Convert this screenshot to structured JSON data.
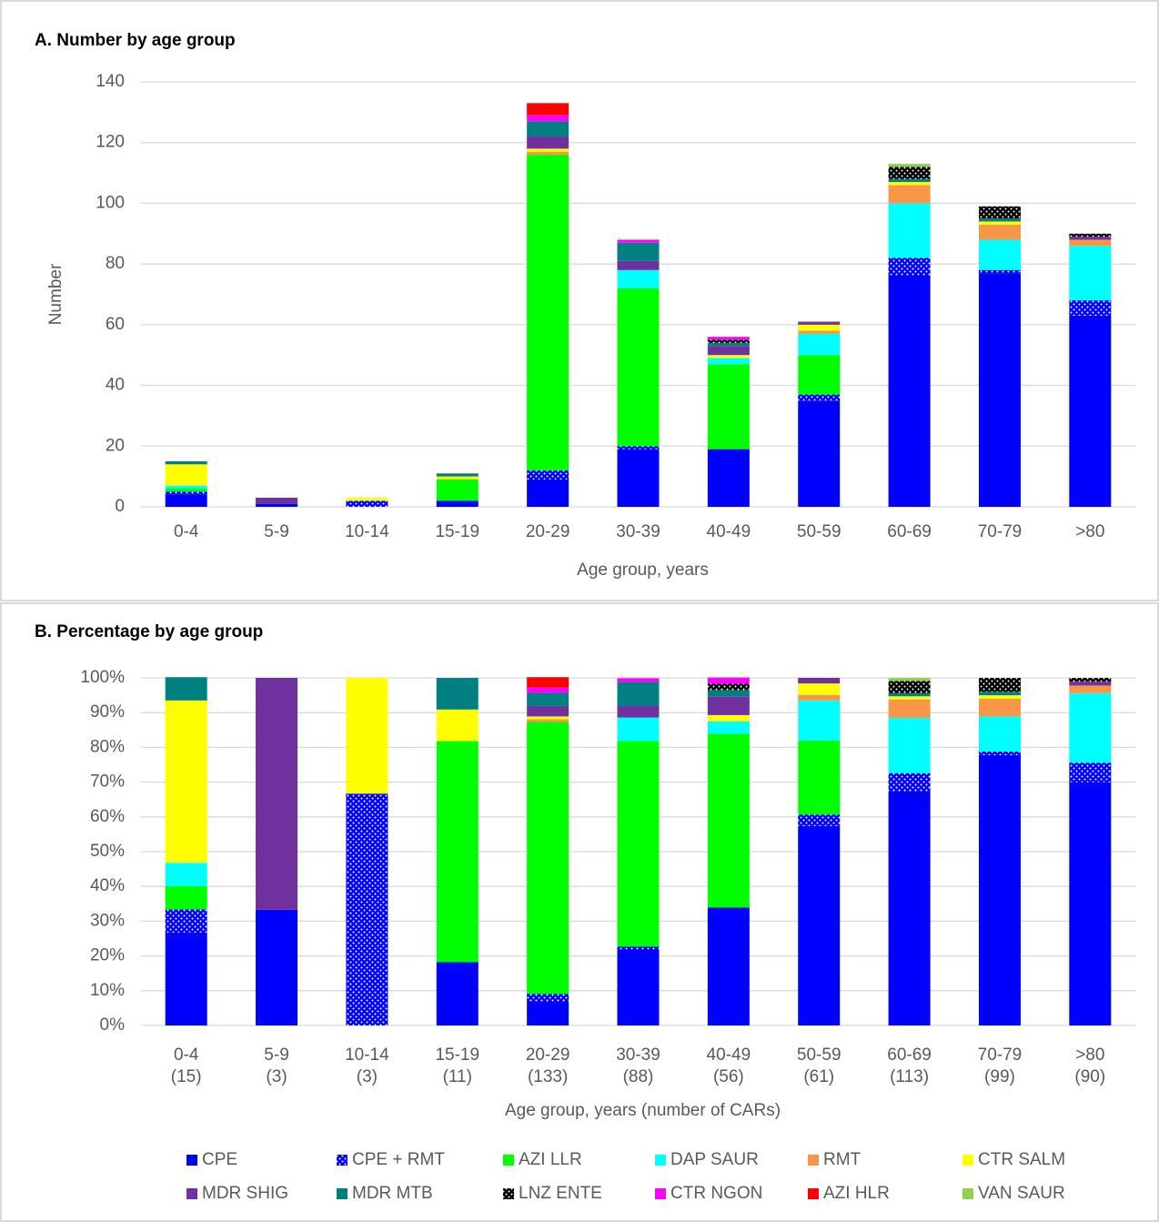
{
  "chart_data": [
    {
      "type": "stacked_bar",
      "title": "A. Number by age group",
      "x_label": "Age group, years",
      "y_label": "Number",
      "categories": [
        "0-4",
        "5-9",
        "10-14",
        "15-19",
        "20-29",
        "30-39",
        "40-49",
        "50-59",
        "60-69",
        "70-79",
        ">80"
      ],
      "ylim": [
        0,
        140
      ],
      "yticks": [
        0,
        20,
        40,
        60,
        80,
        100,
        120,
        140
      ],
      "grid": true,
      "series": [
        {
          "name": "CPE",
          "color": "#0000ff",
          "values": [
            4,
            1,
            0,
            2,
            9,
            19,
            19,
            35,
            76,
            77,
            63
          ]
        },
        {
          "name": "CPE + RMT",
          "color": "#0000ff",
          "pattern": "dots",
          "values": [
            1,
            0,
            2,
            0,
            3,
            1,
            0,
            2,
            6,
            1,
            5
          ]
        },
        {
          "name": "AZI LLR",
          "color": "#00ff00",
          "values": [
            1,
            0,
            0,
            7,
            104,
            52,
            28,
            13,
            0,
            0,
            0
          ]
        },
        {
          "name": "DAP SAUR",
          "color": "#00ffff",
          "values": [
            1,
            0,
            0,
            0,
            0,
            6,
            2,
            7,
            18,
            10,
            18
          ]
        },
        {
          "name": "RMT",
          "color": "#f79646",
          "values": [
            0,
            0,
            0,
            0,
            1,
            0,
            0,
            1,
            6,
            5,
            2
          ]
        },
        {
          "name": "CTR SALM",
          "color": "#ffff00",
          "values": [
            7,
            0,
            1,
            1,
            1,
            0,
            1,
            2,
            1,
            1,
            0
          ]
        },
        {
          "name": "MDR SHIG",
          "color": "#7030a0",
          "values": [
            0,
            2,
            0,
            0,
            4,
            3,
            3,
            1,
            0,
            0,
            1
          ]
        },
        {
          "name": "MDR MTB",
          "color": "#008080",
          "values": [
            1,
            0,
            0,
            1,
            5,
            6,
            1,
            0,
            1,
            1,
            0
          ]
        },
        {
          "name": "LNZ ENTE",
          "color": "#000000",
          "pattern": "dots",
          "values": [
            0,
            0,
            0,
            0,
            0,
            0,
            1,
            0,
            4,
            4,
            1
          ]
        },
        {
          "name": "CTR NGON",
          "color": "#ff00ff",
          "values": [
            0,
            0,
            0,
            0,
            2,
            1,
            1,
            0,
            0,
            0,
            0
          ]
        },
        {
          "name": "AZI HLR",
          "color": "#ff0000",
          "values": [
            0,
            0,
            0,
            0,
            4,
            0,
            0,
            0,
            0,
            0,
            0
          ]
        },
        {
          "name": "VAN SAUR",
          "color": "#92d050",
          "values": [
            0,
            0,
            0,
            0,
            0,
            0,
            0,
            0,
            1,
            0,
            0
          ]
        }
      ]
    },
    {
      "type": "stacked_bar",
      "title": "B. Percentage by age group",
      "x_label": "Age group, years (number of CARs)",
      "categories": [
        [
          "0-4",
          "(15)"
        ],
        [
          "5-9",
          "(3)"
        ],
        [
          "10-14",
          "(3)"
        ],
        [
          "15-19",
          "(11)"
        ],
        [
          "20-29",
          "(133)"
        ],
        [
          "30-39",
          "(88)"
        ],
        [
          "40-49",
          "(56)"
        ],
        [
          "50-59",
          "(61)"
        ],
        [
          "60-69",
          "(113)"
        ],
        [
          "70-79",
          "(99)"
        ],
        [
          ">80",
          "(90)"
        ]
      ],
      "ylim": [
        0,
        100
      ],
      "yticks": [
        {
          "value": 0,
          "label": "0%"
        },
        {
          "value": 10,
          "label": "10%"
        },
        {
          "value": 20,
          "label": "20%"
        },
        {
          "value": 30,
          "label": "30%"
        },
        {
          "value": 40,
          "label": "40%"
        },
        {
          "value": 50,
          "label": "50%"
        },
        {
          "value": 60,
          "label": "60%"
        },
        {
          "value": 70,
          "label": "70%"
        },
        {
          "value": 80,
          "label": "80%"
        },
        {
          "value": 90,
          "label": "90%"
        },
        {
          "value": 100,
          "label": "100%"
        }
      ],
      "grid": true,
      "legend": "bottom",
      "series": [
        {
          "name": "CPE",
          "color": "#0000ff",
          "values": [
            26.7,
            33.3,
            0,
            18.2,
            6.8,
            21.6,
            33.9,
            57.4,
            67.3,
            77.8,
            70.0
          ]
        },
        {
          "name": "CPE + RMT",
          "color": "#0000ff",
          "pattern": "dots",
          "values": [
            6.7,
            0,
            66.7,
            0,
            2.3,
            1.1,
            0,
            3.3,
            5.3,
            1.0,
            5.6
          ]
        },
        {
          "name": "AZI LLR",
          "color": "#00ff00",
          "values": [
            6.7,
            0,
            0,
            63.6,
            78.2,
            59.1,
            50.0,
            21.3,
            0,
            0,
            0
          ]
        },
        {
          "name": "DAP SAUR",
          "color": "#00ffff",
          "values": [
            6.7,
            0,
            0,
            0,
            0,
            6.8,
            3.6,
            11.5,
            15.9,
            10.1,
            20.0
          ]
        },
        {
          "name": "RMT",
          "color": "#f79646",
          "values": [
            0,
            0,
            0,
            0,
            0.8,
            0,
            0,
            1.6,
            5.3,
            5.1,
            2.2
          ]
        },
        {
          "name": "CTR SALM",
          "color": "#ffff00",
          "values": [
            46.7,
            0,
            33.3,
            9.1,
            0.8,
            0,
            1.8,
            3.3,
            0.9,
            1.0,
            0
          ]
        },
        {
          "name": "MDR SHIG",
          "color": "#7030a0",
          "values": [
            0,
            66.7,
            0,
            0,
            3.0,
            3.4,
            5.4,
            1.6,
            0,
            0,
            1.1
          ]
        },
        {
          "name": "MDR MTB",
          "color": "#008080",
          "values": [
            6.7,
            0,
            0,
            9.1,
            3.8,
            6.8,
            1.8,
            0,
            0.9,
            1.0,
            0
          ]
        },
        {
          "name": "LNZ ENTE",
          "color": "#000000",
          "pattern": "dots",
          "values": [
            0,
            0,
            0,
            0,
            0,
            0,
            1.8,
            0,
            3.5,
            4.0,
            1.1
          ]
        },
        {
          "name": "CTR NGON",
          "color": "#ff00ff",
          "values": [
            0,
            0,
            0,
            0,
            1.5,
            1.1,
            1.8,
            0,
            0,
            0,
            0
          ]
        },
        {
          "name": "AZI HLR",
          "color": "#ff0000",
          "values": [
            0,
            0,
            0,
            0,
            3.0,
            0,
            0,
            0,
            0,
            0,
            0
          ]
        },
        {
          "name": "VAN SAUR",
          "color": "#92d050",
          "values": [
            0,
            0,
            0,
            0,
            0,
            0,
            0,
            0,
            0.9,
            0,
            0
          ]
        }
      ]
    }
  ]
}
